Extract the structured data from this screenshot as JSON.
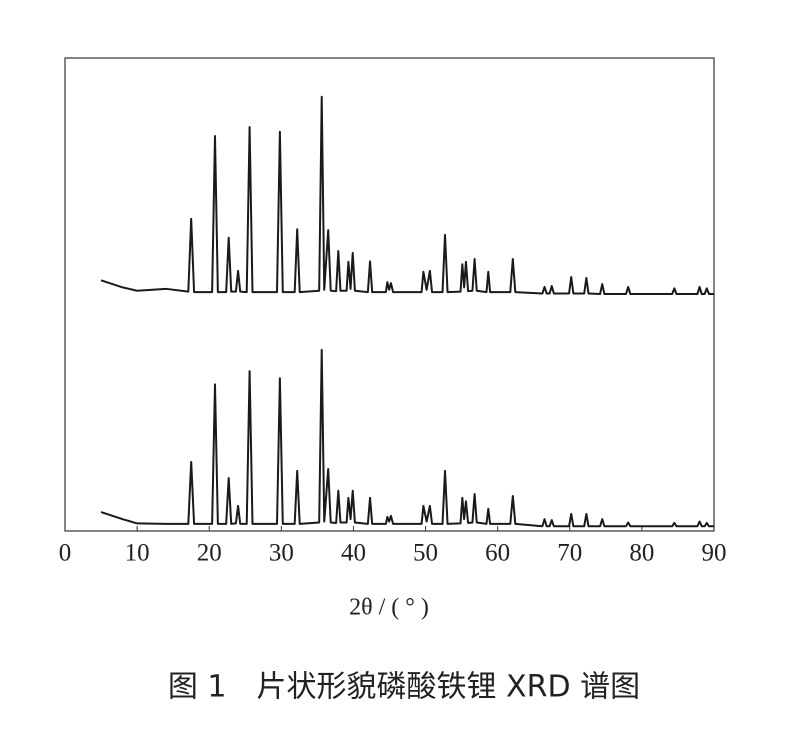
{
  "chart_data": {
    "type": "line",
    "title": "图 1　片状形貌磷酸铁锂 XRD 谱图",
    "xlabel": "2θ / ( ° )",
    "x": [
      5,
      8,
      10,
      14,
      17.1,
      17.5,
      17.9,
      20.4,
      20.8,
      21.2,
      22.35,
      22.7,
      23.05,
      23.7,
      24.0,
      24.3,
      25.2,
      25.6,
      26.0,
      29.4,
      29.8,
      30.2,
      31.85,
      32.2,
      32.55,
      35.25,
      35.6,
      35.95,
      36.5,
      36.85,
      37.6,
      37.9,
      38.2,
      39.05,
      39.3,
      39.6,
      39.9,
      40.2,
      42.0,
      42.3,
      42.6,
      44.5,
      44.7,
      44.95,
      45.2,
      45.5,
      49.45,
      49.7,
      50.15,
      50.6,
      50.9,
      52.35,
      52.7,
      53.05,
      54.85,
      55.1,
      55.35,
      55.6,
      55.9,
      56.5,
      56.8,
      57.1,
      58.45,
      58.7,
      58.95,
      61.75,
      62.1,
      62.45,
      66.2,
      66.5,
      66.8,
      67.2,
      67.5,
      67.8,
      69.9,
      70.2,
      70.5,
      72.0,
      72.3,
      72.6,
      74.2,
      74.5,
      74.8,
      77.8,
      78.1,
      78.4,
      84.2,
      84.5,
      84.8,
      87.7,
      88,
      88.3,
      88.7,
      89,
      89.3,
      90
    ],
    "series": [
      {
        "color": "#1a1a1a",
        "values": [
          53,
          51.5,
          50.8,
          51.2,
          50.6,
          66,
          50.5,
          50.5,
          83.5,
          50.5,
          50.5,
          62,
          50.6,
          50.6,
          55,
          50.6,
          50.5,
          85.4,
          50.5,
          50.5,
          84.4,
          50.5,
          50.5,
          63.8,
          50.5,
          50.8,
          91.8,
          51,
          63.6,
          50.8,
          50.7,
          59.2,
          50.8,
          50.8,
          56.9,
          51.2,
          58.8,
          50.8,
          50.5,
          57,
          50.5,
          50.5,
          52.6,
          51,
          52.4,
          50.5,
          50.5,
          54.8,
          51,
          55,
          50.5,
          50.5,
          62.6,
          50.5,
          50.6,
          56.4,
          51.5,
          56.9,
          50.7,
          50.8,
          57.5,
          50.8,
          50.5,
          54.8,
          50.5,
          50.5,
          57.5,
          50.5,
          50.2,
          51.6,
          50.2,
          50.2,
          51.8,
          50.2,
          50.2,
          53.7,
          50.2,
          50.2,
          53.5,
          50.2,
          50.1,
          52.2,
          50.1,
          50.1,
          51.6,
          50.1,
          50.1,
          51.3,
          50.1,
          50.1,
          51.6,
          50.1,
          50.1,
          51.3,
          50.1,
          50.1
        ]
      },
      {
        "color": "#1a1a1a",
        "values": [
          4,
          2.5,
          1.6,
          1.5,
          1.5,
          14.6,
          1.5,
          1.5,
          31,
          1.5,
          1.5,
          11.2,
          1.5,
          1.6,
          5.3,
          1.5,
          1.5,
          33.8,
          1.5,
          1.5,
          32.3,
          1.5,
          1.5,
          12.7,
          1.5,
          1.8,
          38.3,
          2,
          13.1,
          1.8,
          1.7,
          8.5,
          1.8,
          1.8,
          7,
          2.5,
          8.5,
          1.8,
          1.5,
          7,
          1.5,
          1.5,
          3,
          2,
          3.2,
          1.5,
          1.5,
          5.3,
          2,
          5.3,
          1.5,
          1.5,
          12.7,
          1.5,
          1.6,
          7,
          2.5,
          6.3,
          1.7,
          1.8,
          7.8,
          1.8,
          1.5,
          4.7,
          1.5,
          1.5,
          7.4,
          1.5,
          1,
          2.5,
          1,
          1,
          2.3,
          1,
          1,
          3.6,
          1,
          1,
          3.6,
          1,
          1,
          2.5,
          1,
          1,
          1.8,
          1,
          1,
          1.7,
          1,
          1,
          2,
          1,
          1,
          1.7,
          1,
          1
        ]
      }
    ],
    "xlim": [
      0,
      90
    ],
    "xticks": [
      0,
      10,
      20,
      30,
      40,
      50,
      60,
      70,
      80,
      90
    ],
    "ylim": [
      0,
      100
    ]
  }
}
